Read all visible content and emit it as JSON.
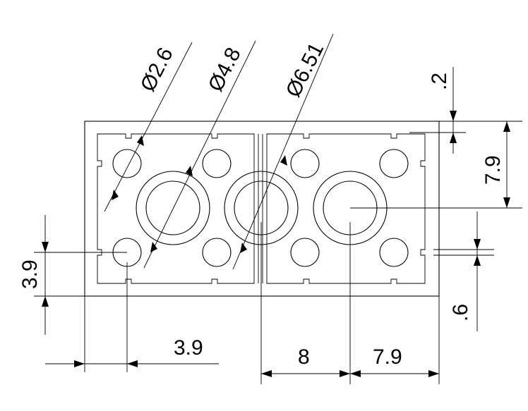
{
  "diagram": {
    "type": "technical-drawing",
    "dimensions": {
      "dia_small": "Ø2.6",
      "dia_medium": "Ø4.8",
      "dia_large": "Ø6.51",
      "top_offset": ".2",
      "right_height": "7.9",
      "right_gap": ".6",
      "left_height": "3.9",
      "bottom_left": "3.9",
      "bottom_mid": "8",
      "bottom_right": "7.9"
    }
  }
}
